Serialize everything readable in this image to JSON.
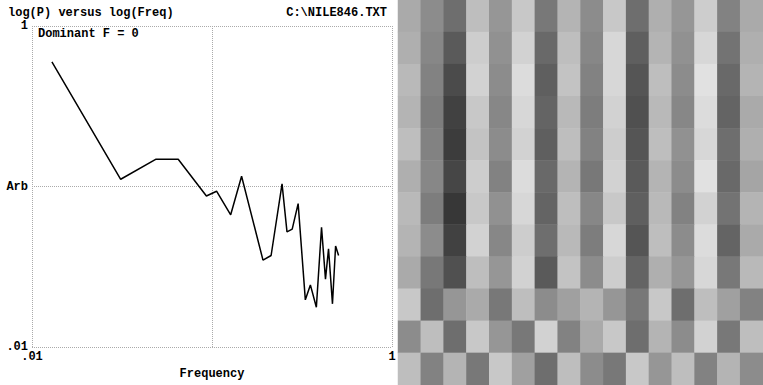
{
  "chart_data": [
    {
      "type": "line",
      "title": "log(P) versus log(Freq)",
      "subtitle": "C:\\NILE846.TXT",
      "annotation": "Dominant F = 0",
      "xlabel": "Frequency",
      "x": [
        0.0129,
        0.0311,
        0.0489,
        0.0649,
        0.0931,
        0.106,
        0.127,
        0.146,
        0.192,
        0.213,
        0.245,
        0.261,
        0.279,
        0.301,
        0.33,
        0.352,
        0.38,
        0.406,
        0.427,
        0.444,
        0.467,
        0.486,
        0.505
      ],
      "values": [
        0.597,
        0.111,
        0.148,
        0.148,
        0.0873,
        0.0935,
        0.0667,
        0.116,
        0.0348,
        0.0372,
        0.104,
        0.0522,
        0.0543,
        0.0783,
        0.0197,
        0.0244,
        0.0177,
        0.0558,
        0.0265,
        0.0409,
        0.0186,
        0.0426,
        0.0372
      ],
      "color": "#000000",
      "log": true,
      "xlim": [
        0.01,
        1
      ],
      "ylim": [
        0.01,
        1
      ],
      "xticks": [
        {
          "value": 0.01,
          "label": ".01"
        },
        {
          "value": 1,
          "label": "1"
        }
      ],
      "yticks": [
        {
          "value": 0.01,
          "label": ".01"
        },
        {
          "value": 0.1,
          "label": "Arb"
        },
        {
          "value": 1,
          "label": "1"
        }
      ],
      "grid": true,
      "marker": "none",
      "line_style": "solid"
    },
    {
      "type": "heatmap",
      "tick_labels": false,
      "cells": [
        [
          170,
          140,
          110,
          190,
          150,
          200,
          120,
          180,
          140,
          200,
          110,
          175,
          150,
          205,
          130,
          170
        ],
        [
          175,
          135,
          90,
          205,
          145,
          210,
          105,
          190,
          135,
          215,
          95,
          180,
          145,
          215,
          115,
          175
        ],
        [
          185,
          130,
          75,
          210,
          140,
          220,
          95,
          195,
          130,
          215,
          85,
          190,
          140,
          225,
          105,
          180
        ],
        [
          180,
          125,
          65,
          200,
          135,
          215,
          100,
          185,
          125,
          210,
          80,
          185,
          135,
          220,
          100,
          170
        ],
        [
          190,
          130,
          60,
          195,
          140,
          210,
          95,
          190,
          130,
          205,
          85,
          190,
          145,
          215,
          110,
          175
        ],
        [
          175,
          135,
          70,
          205,
          130,
          220,
          105,
          180,
          120,
          210,
          90,
          180,
          140,
          225,
          105,
          165
        ],
        [
          185,
          125,
          55,
          200,
          145,
          215,
          100,
          190,
          135,
          200,
          95,
          185,
          130,
          210,
          115,
          180
        ],
        [
          180,
          140,
          65,
          210,
          135,
          205,
          110,
          185,
          125,
          215,
          85,
          190,
          140,
          220,
          100,
          170
        ],
        [
          170,
          120,
          80,
          190,
          150,
          210,
          90,
          195,
          140,
          205,
          100,
          175,
          150,
          215,
          120,
          185
        ],
        [
          200,
          110,
          150,
          170,
          120,
          190,
          140,
          160,
          180,
          150,
          120,
          200,
          110,
          190,
          160,
          130
        ],
        [
          140,
          190,
          110,
          200,
          150,
          120,
          210,
          130,
          170,
          200,
          110,
          180,
          140,
          210,
          120,
          190
        ],
        [
          190,
          130,
          180,
          120,
          200,
          160,
          110,
          190,
          140,
          120,
          200,
          150,
          190,
          130,
          180,
          140
        ]
      ]
    }
  ]
}
